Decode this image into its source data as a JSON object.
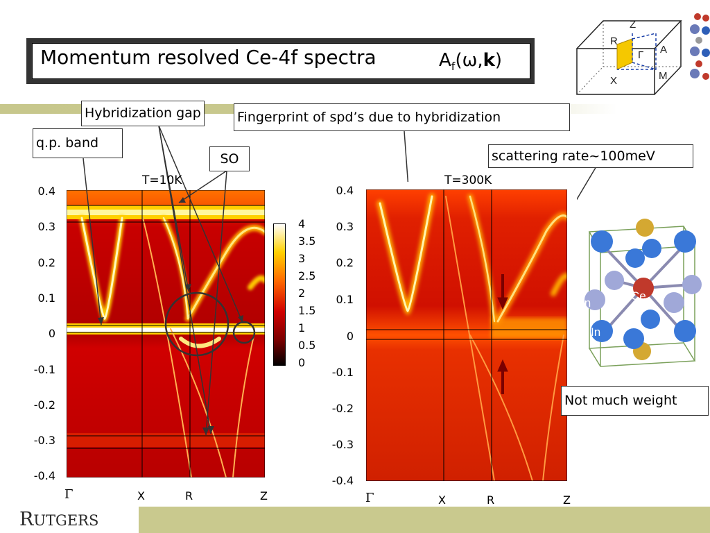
{
  "title": {
    "text": "Momentum resolved Ce-4f spectra",
    "formula_A": "A",
    "formula_sub": "f",
    "formula_args": "(ω,",
    "formula_k": "k",
    "formula_close": ")"
  },
  "callouts": {
    "hybridization_gap": "Hybridization gap",
    "fingerprint": "Fingerprint of spd’s due to hybridization",
    "qp_band": "q.p. band",
    "so": "SO",
    "scattering_rate": "scattering rate~100meV",
    "not_much_weight": "Not much weight"
  },
  "left_panel": {
    "temperature": "T=10K",
    "y_ticks": [
      "0.4",
      "0.3",
      "0.2",
      "0.1",
      "0",
      "-0.1",
      "-0.2",
      "-0.3",
      "-0.4"
    ],
    "x_ticks": [
      "Γ",
      "X",
      "R",
      "Z"
    ]
  },
  "right_panel": {
    "temperature": "T=300K",
    "y_ticks": [
      "0.4",
      "0.3",
      "0.2",
      "0.1",
      "0",
      "-0.1",
      "-0.2",
      "-0.3",
      "-0.4"
    ],
    "x_ticks": [
      "Γ",
      "X",
      "R",
      "Z"
    ]
  },
  "colorbar": {
    "ticks": [
      "4",
      "3.5",
      "3",
      "2.5",
      "2",
      "1.5",
      "1",
      "0.5",
      "0"
    ],
    "colors": [
      "#000000",
      "#7a0000",
      "#d00000",
      "#ff6a00",
      "#ffd000",
      "#ffffff"
    ]
  },
  "bz_labels": [
    "Z",
    "R",
    "Γ",
    "A",
    "X",
    "M"
  ],
  "crystal_labels": {
    "ce": "Ce",
    "in1": "In",
    "in2": "In"
  },
  "logo": {
    "big_r": "R",
    "rest": "UTGERS"
  },
  "chart_data": [
    {
      "type": "heatmap",
      "title": "T=10K",
      "xlabel": "",
      "ylabel": "",
      "x_ticks": [
        "Γ",
        "X",
        "R",
        "Z"
      ],
      "ylim": [
        -0.4,
        0.4
      ],
      "y_ticks": [
        0.4,
        0.3,
        0.2,
        0.1,
        0,
        -0.1,
        -0.2,
        -0.3,
        -0.4
      ],
      "colorbar_range": [
        0,
        4
      ]
    },
    {
      "type": "heatmap",
      "title": "T=300K",
      "xlabel": "",
      "ylabel": "",
      "x_ticks": [
        "Γ",
        "X",
        "R",
        "Z"
      ],
      "ylim": [
        -0.4,
        0.4
      ],
      "y_ticks": [
        0.4,
        0.3,
        0.2,
        0.1,
        0,
        -0.1,
        -0.2,
        -0.3,
        -0.4
      ]
    }
  ]
}
